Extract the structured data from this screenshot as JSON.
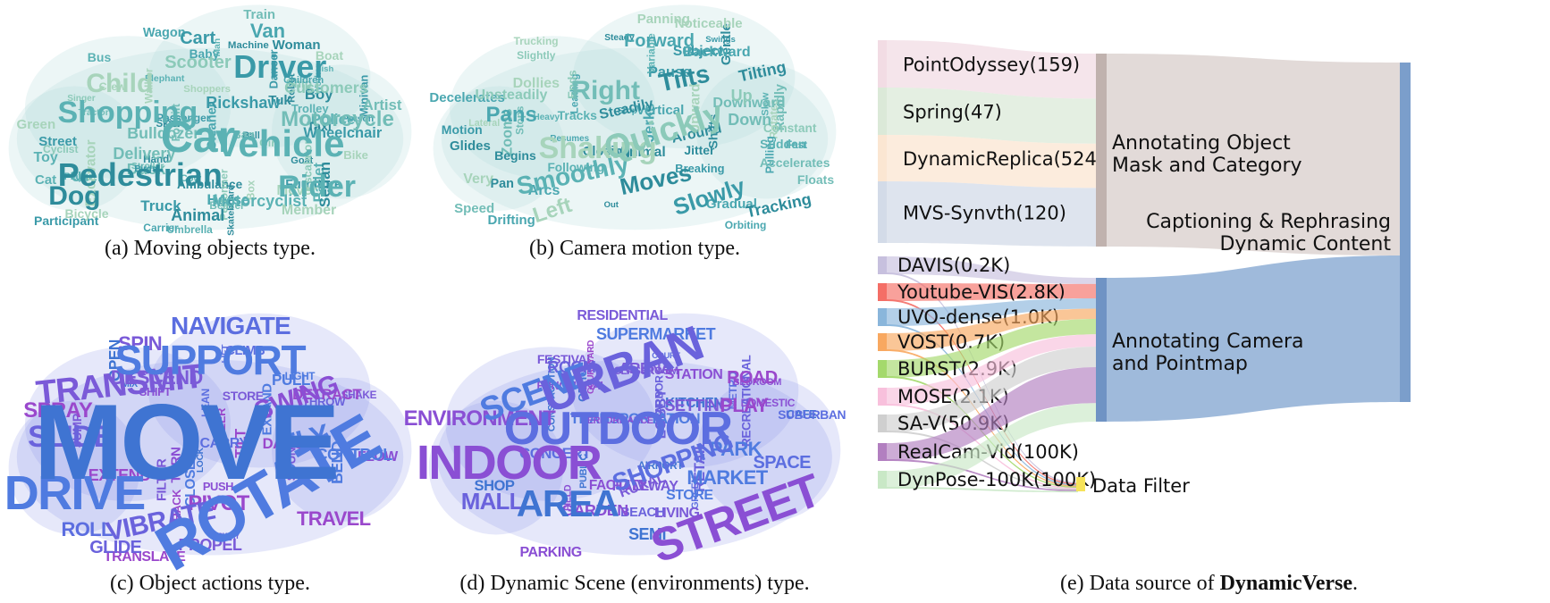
{
  "panels": {
    "a": {
      "caption": "(a) Moving objects type.",
      "palette": [
        "#2e8c9b",
        "#3a9aa8",
        "#4aa7b0",
        "#5bb2b4",
        "#72bdb7",
        "#8ccab9",
        "#a7d4bb"
      ],
      "words": [
        "Car",
        "Vehicle",
        "Pedestrian",
        "Driver",
        "Shopping",
        "Rider",
        "Dog",
        "Child",
        "Motorcycle",
        "Van",
        "Cart",
        "Scooter",
        "Train",
        "Woman",
        "Bus",
        "Truck",
        "Delivery",
        "Street",
        "Toy",
        "Cat",
        "Rickshaw",
        "Tuk",
        "Boat",
        "Member",
        "Animal",
        "Motorcyclist",
        "Bicycle",
        "Participant",
        "Carrier",
        "Umbrella",
        "Elephant",
        "Performer",
        "Birds",
        "Children",
        "Man",
        "Bag",
        "Trolley",
        "Dancer",
        "Shoppers",
        "Artist",
        "Passenger",
        "Excavator",
        "Taxi",
        "Police",
        "Sedan",
        "Mover",
        "Skateboard",
        "Wheelchair",
        "Skier",
        "Hand",
        "Cleaner",
        "Escalator",
        "Cyclist",
        "Walker",
        "Ball",
        "Crew",
        "Tractor",
        "Green",
        "Ship",
        "Customers",
        "Bulldozer",
        "User",
        "Fish",
        "Person",
        "Box",
        "Forklift",
        "Beaver",
        "Player",
        "Worker",
        "Ambulance",
        "Bike",
        "Goat",
        "Pallet",
        "Cow",
        "Horse",
        "Minivan",
        "Furniture",
        "Stroller",
        "Machine",
        "Wagon",
        "Singer",
        "Baby",
        "Girl",
        "Boy",
        "Robot",
        "Duck"
      ]
    },
    "b": {
      "caption": "(b) Camera motion type.",
      "palette": [
        "#2e8c9b",
        "#3a9aa8",
        "#4aa7b0",
        "#5bb2b4",
        "#72bdb7",
        "#8ccab9",
        "#a7d4bb"
      ],
      "words": [
        "Quickly",
        "Right",
        "Shaking",
        "Smoothly",
        "Moves",
        "Left",
        "Slowly",
        "Tilts",
        "Forward",
        "Pans",
        "Unsteadily",
        "Dollies",
        "Tilting",
        "Up",
        "Down",
        "Tracking",
        "Arcs",
        "Drifting",
        "Speed",
        "Very",
        "Glides",
        "Motion",
        "Begins",
        "Tracks",
        "Steadily",
        "Around",
        "Panning",
        "Noticeable",
        "Backward",
        "Slightly",
        "Trucking",
        "Orbiting",
        "Sudden",
        "Accelerates",
        "Floats",
        "Stops",
        "Jerks",
        "Pan",
        "Minimal",
        "Heavy",
        "Decelerates",
        "Following",
        "Subject",
        "Zooms",
        "Upward",
        "Downward",
        "Out",
        "Pulling",
        "Rotates",
        "Constant",
        "Gentle",
        "Shifts",
        "Variable",
        "Closing",
        "Breaking",
        "Ends",
        "Leading",
        "Resumes",
        "Stop",
        "Pause",
        "Rapidly",
        "Fast",
        "Slow",
        "Swings",
        "Steady",
        "Gradual",
        "Jitter",
        "Vertical",
        "Lateral"
      ]
    },
    "c": {
      "caption": "(c) Object actions type.",
      "palette": [
        "#3f74d2",
        "#4f7be0",
        "#5c6ee0",
        "#6a62dc",
        "#7a5ad8",
        "#8a4fd4",
        "#9a48cc"
      ],
      "words": [
        "MOVE",
        "ROTATE",
        "DRIVE",
        "SUPPORT",
        "TRANSMIT",
        "NAVIGATE",
        "SLIDE",
        "SPRAY",
        "SWING",
        "FLY",
        "VIBRATE",
        "PIVOT",
        "DESCEND",
        "SPIN",
        "ROLL",
        "GLIDE",
        "TRAVEL",
        "CONTROL",
        "EXTEND",
        "PROPEL",
        "TRANSLATE",
        "STORE",
        "CLOSE",
        "STEER",
        "TRACK",
        "DETRACT",
        "THROW",
        "LIFT",
        "EXPAND",
        "SOUND",
        "OPEN",
        "LOCK",
        "FILTER",
        "CARRY",
        "PUSH",
        "PULL",
        "DANCE",
        "CLIMB",
        "SHIFT",
        "MIX",
        "FLOW",
        "LIGHT",
        "TILT",
        "BEND",
        "JUMP",
        "SWAY",
        "SHAKE",
        "LEAN",
        "TURN"
      ]
    },
    "d": {
      "caption": "(d) Dynamic Scene (environments) type.",
      "palette": [
        "#3f74d2",
        "#4f7be0",
        "#5c6ee0",
        "#6a62dc",
        "#7a5ad8",
        "#8a4fd4",
        "#9a48cc"
      ],
      "words": [
        "URBAN",
        "OUTDOOR",
        "INDOOR",
        "STREET",
        "AREA",
        "SCENE",
        "ENVIRONMENT",
        "SHOPPING",
        "MALL",
        "PLAY",
        "ROOM",
        "SUPERMARKET",
        "RESIDENTIAL",
        "ROAD",
        "SETTING",
        "MARKET",
        "PARK",
        "SPACE",
        "SEMI",
        "LIVING",
        "PARKING",
        "STATION",
        "RURAL",
        "STORE",
        "COURTYARD",
        "BEDROOM",
        "FESTIVAL",
        "PERFORMANCE",
        "FUNCTIONAL",
        "PUBLIC",
        "SUBURBAN",
        "RETAIL",
        "TRANSPORTATION",
        "CONSTRUCTION",
        "FACILITY",
        "RECREATIONAL",
        "CLASSROOM",
        "GARDEN",
        "DOMESTIC",
        "CONCERT",
        "HALLWAY",
        "METRO",
        "COURT",
        "GREEN",
        "KITCHEN",
        "LOBBY",
        "AIRPORT",
        "CAFE",
        "OFFICE",
        "FIELD",
        "BEACH",
        "SHOP",
        "ARENA",
        "HARBOR"
      ]
    },
    "e": {
      "caption_prefix": "(e) Data source of ",
      "caption_bold": "DynamicVerse",
      "caption_suffix": "."
    }
  },
  "sankey": {
    "sources_top": [
      {
        "label": "PointOdyssey(159)",
        "color": "#f2dce4"
      },
      {
        "label": "Spring(47)",
        "color": "#dbe9d8"
      },
      {
        "label": "DynamicReplica(524)",
        "color": "#fbe6d2"
      },
      {
        "label": "MVS-Synvth(120)",
        "color": "#d3dbe8"
      }
    ],
    "sources_bottom": [
      {
        "label": "DAVIS(0.2K)",
        "color": "#c7c0de"
      },
      {
        "label": "Youtube-VIS(2.8K)",
        "color": "#f46e66"
      },
      {
        "label": "UVO-dense(1.0K)",
        "color": "#8ab6db"
      },
      {
        "label": "VOST(0.7K)",
        "color": "#f8a860"
      },
      {
        "label": "BURST(2.9K)",
        "color": "#a4d96c"
      },
      {
        "label": "MOSE(2.1K)",
        "color": "#f8c0dc"
      },
      {
        "label": "SA-V(50.9K)",
        "color": "#cfcfcf"
      },
      {
        "label": "RealCam-Vid(100K)",
        "color": "#b27fc0"
      },
      {
        "label": "DynPose-100K(100K)",
        "color": "#c9e8c6"
      }
    ],
    "mid_top": {
      "label_line1": "Annotating Object",
      "label_line2": "Mask and Category",
      "color": "#cbbcb8"
    },
    "mid_bottom": {
      "label_line1": "Annotating Camera",
      "label_line2": "and Pointmap",
      "color": "#7fa3cf"
    },
    "final": {
      "label_line1": "Captioning & Rephrasing",
      "label_line2": "Dynamic Content",
      "color": "#7fa3cf"
    },
    "filter": {
      "label": "Data Filter",
      "color": "#f6e35a"
    }
  }
}
